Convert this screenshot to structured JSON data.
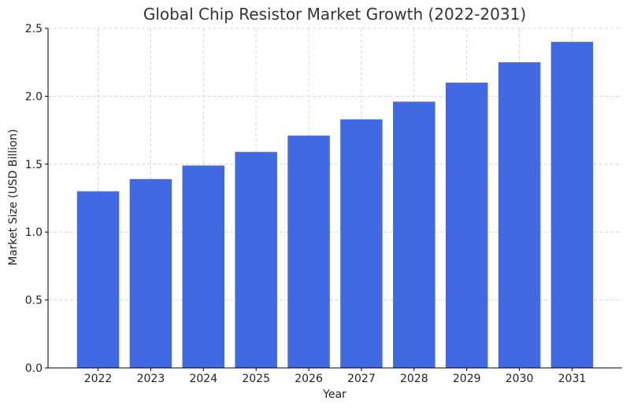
{
  "chart_data": {
    "type": "bar",
    "title": "Global Chip Resistor Market Growth (2022-2031)",
    "xlabel": "Year",
    "ylabel": "Market Size (USD Billion)",
    "categories": [
      "2022",
      "2023",
      "2024",
      "2025",
      "2026",
      "2027",
      "2028",
      "2029",
      "2030",
      "2031"
    ],
    "values": [
      1.3,
      1.39,
      1.49,
      1.59,
      1.71,
      1.83,
      1.96,
      2.1,
      2.25,
      2.4
    ],
    "ylim": [
      0,
      2.5
    ],
    "yticks": [
      0.0,
      0.5,
      1.0,
      1.5,
      2.0,
      2.5
    ],
    "ytick_labels": [
      "0.0",
      "0.5",
      "1.0",
      "1.5",
      "2.0",
      "2.5"
    ],
    "grid": true,
    "bar_color": "#4169e1"
  }
}
